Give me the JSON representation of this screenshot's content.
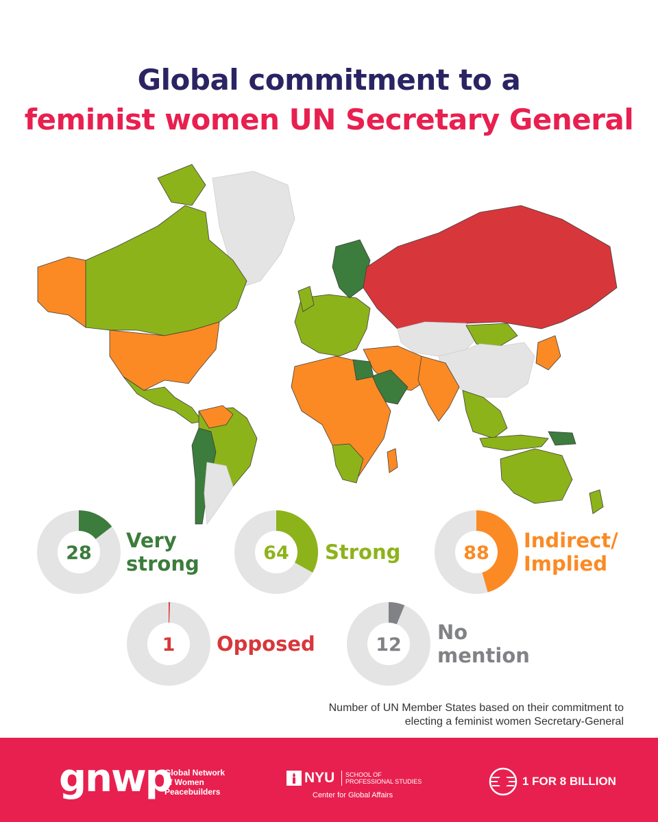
{
  "title": {
    "line1": "Global commitment to a",
    "line2": "feminist women UN Secretary General",
    "line1_color": "#2b2462",
    "line2_color": "#e8204f"
  },
  "colors": {
    "very_strong": "#3c7c3c",
    "strong": "#8db31a",
    "indirect": "#fb8a24",
    "opposed": "#d7373b",
    "no_mention": "#808285",
    "no_data": "#e4e4e4",
    "track": "#e4e4e4",
    "footer": "#e8204f"
  },
  "chart_data": {
    "type": "pie",
    "variant": "donut",
    "total": 193,
    "categories": [
      {
        "key": "very_strong",
        "label_lines": [
          "Very",
          "strong"
        ],
        "value": 28,
        "color": "#3c7c3c"
      },
      {
        "key": "strong",
        "label_lines": [
          "Strong"
        ],
        "value": 64,
        "color": "#8db31a"
      },
      {
        "key": "indirect",
        "label_lines": [
          "Indirect/",
          "Implied"
        ],
        "value": 88,
        "color": "#fb8a24"
      },
      {
        "key": "opposed",
        "label_lines": [
          "Opposed"
        ],
        "value": 1,
        "color": "#d7373b"
      },
      {
        "key": "no_mention",
        "label_lines": [
          "No",
          "mention"
        ],
        "value": 12,
        "color": "#808285"
      }
    ]
  },
  "caption": {
    "line1": "Number of UN Member States based on their commitment to",
    "line2": "electing a feminist women Secretary-General"
  },
  "footer": {
    "gnwp_logo": "gnwp",
    "gnwp_name_lines": [
      "Global Network",
      "of Women",
      "Peacebuilders"
    ],
    "nyu_word": "NYU",
    "nyu_school_lines": [
      "SCHOOL OF",
      "PROFESSIONAL STUDIES"
    ],
    "nyu_center": "Center for Global Affairs",
    "b8_text": "1 FOR 8 BILLION",
    "b8_icon": "globe-ring-icon",
    "nyu_icon": "torch-icon"
  }
}
